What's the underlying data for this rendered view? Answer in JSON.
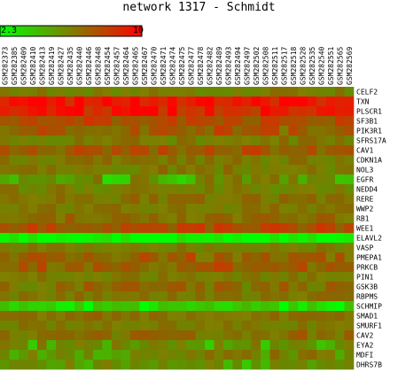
{
  "title": "network 1317 - Schmidt",
  "chart_data": {
    "type": "heatmap",
    "colorbar": {
      "min_label": "2.3",
      "max_label": "10",
      "min": 2.3,
      "max": 10,
      "low_color": "#00ff00",
      "high_color": "#ff0000"
    },
    "columns": [
      "GSM282373",
      "GSM282385",
      "GSM282409",
      "GSM282410",
      "GSM282413",
      "GSM282419",
      "GSM282427",
      "GSM282435",
      "GSM282440",
      "GSM282446",
      "GSM282448",
      "GSM282454",
      "GSM282457",
      "GSM282464",
      "GSM282465",
      "GSM282467",
      "GSM282470",
      "GSM282471",
      "GSM282474",
      "GSM282475",
      "GSM282477",
      "GSM282478",
      "GSM282482",
      "GSM282489",
      "GSM282493",
      "GSM282494",
      "GSM282497",
      "GSM282502",
      "GSM282508",
      "GSM282511",
      "GSM282517",
      "GSM282518",
      "GSM282528",
      "GSM282535",
      "GSM282540",
      "GSM282551",
      "GSM282565",
      "GSM282569"
    ],
    "rows": [
      "CELF2",
      "TXN",
      "PLSCR1",
      "SF3B1",
      "PIK3R1",
      "SFRS17A",
      "CAV1",
      "CDKN1A",
      "NOL3",
      "EGFR",
      "NEDD4",
      "RERE",
      "WWP2",
      "RB1",
      "WEE1",
      "ELAVL2",
      "VASP",
      "PMEPA1",
      "PRKCB",
      "PIN1",
      "GSK3B",
      "RBPMS",
      "SCHMIP",
      "SMAD1",
      "SMURF1",
      "CAV2",
      "EYA2",
      "MDFI",
      "DHRS7B"
    ],
    "row_base": [
      6.0,
      9.6,
      9.4,
      8.2,
      7.6,
      6.2,
      7.8,
      6.4,
      6.2,
      4.9,
      6.0,
      6.6,
      6.3,
      7.0,
      8.2,
      2.5,
      6.1,
      7.4,
      7.5,
      6.2,
      6.6,
      6.4,
      3.0,
      6.8,
      6.2,
      6.8,
      5.0,
      5.6,
      4.8
    ],
    "row_spread": [
      0.6,
      0.35,
      0.5,
      0.55,
      0.9,
      0.7,
      0.8,
      0.7,
      0.8,
      1.3,
      0.7,
      0.6,
      0.6,
      0.6,
      0.6,
      0.3,
      0.5,
      0.9,
      0.8,
      0.5,
      0.9,
      0.6,
      0.5,
      0.5,
      0.5,
      0.8,
      1.1,
      1.1,
      0.9
    ],
    "values_note": "approximate: cell shades estimated from image; generated per row around row_base with row_spread variation"
  }
}
